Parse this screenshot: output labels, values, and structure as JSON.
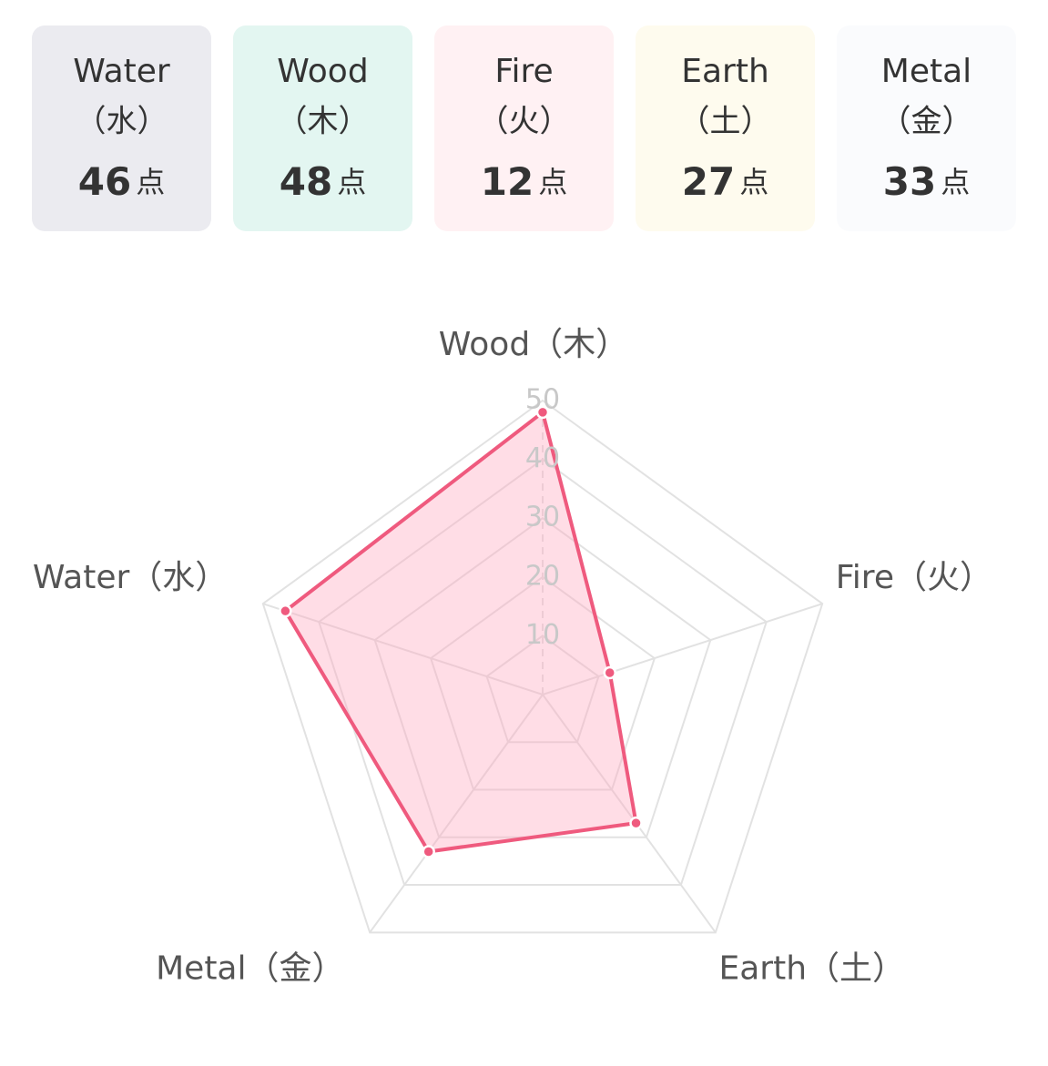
{
  "cards": [
    {
      "name": "Water",
      "kanji": "（水）",
      "score": 46,
      "unit": "点"
    },
    {
      "name": "Wood",
      "kanji": "（木）",
      "score": 48,
      "unit": "点"
    },
    {
      "name": "Fire",
      "kanji": "（火）",
      "score": 12,
      "unit": "点"
    },
    {
      "name": "Earth",
      "kanji": "（土）",
      "score": 27,
      "unit": "点"
    },
    {
      "name": "Metal",
      "kanji": "（金）",
      "score": 33,
      "unit": "点"
    }
  ],
  "card_colors": [
    "#ebebf0",
    "#e3f6f1",
    "#fff1f3",
    "#fefbee",
    "#fafbfd"
  ],
  "chart_data": {
    "type": "radar",
    "categories": [
      "Wood（木）",
      "Fire（火）",
      "Earth（土）",
      "Metal（金）",
      "Water（水）"
    ],
    "values": [
      48,
      12,
      27,
      33,
      46
    ],
    "color": "#ef5a7e",
    "ylim": [
      0,
      50
    ],
    "yticks": [
      10,
      20,
      30,
      40,
      50
    ],
    "grid": true
  }
}
